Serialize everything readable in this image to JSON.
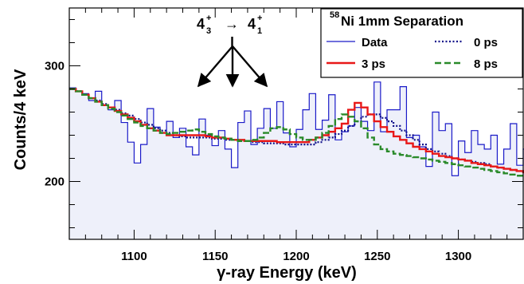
{
  "chart_data": {
    "type": "line",
    "xlabel": "γ-ray Energy (keV)",
    "ylabel": "Counts/4 keV",
    "xlim": [
      1060,
      1340
    ],
    "ylim": [
      150,
      350
    ],
    "xticks": [
      1100,
      1150,
      1200,
      1250,
      1300
    ],
    "yticks": [
      200,
      300
    ],
    "grid": false,
    "legend_placement": "top-right",
    "legend": {
      "title_sup": "58",
      "title": "Ni 1mm Separation",
      "entries": [
        "Data",
        "0 ps",
        "3 ps",
        "8 ps"
      ]
    },
    "annotation": {
      "left_main": "4",
      "left_super": "+",
      "left_sub": "3",
      "arrow": "→",
      "right_main": "4",
      "right_super": "+",
      "right_sub": "1",
      "arrow_targets_x": [
        1135,
        1160,
        1183
      ]
    },
    "bin_width": 4,
    "bin_start": 1060,
    "series": [
      {
        "name": "Data",
        "color": "#1a1ac8",
        "style": "step-filled",
        "fill": "#eef0fa",
        "values": [
          281,
          278,
          276,
          270,
          278,
          266,
          262,
          270,
          251,
          234,
          216,
          232,
          263,
          247,
          242,
          252,
          238,
          246,
          230,
          223,
          254,
          240,
          231,
          244,
          228,
          212,
          251,
          261,
          232,
          246,
          263,
          246,
          269,
          242,
          230,
          245,
          262,
          276,
          245,
          253,
          275,
          236,
          243,
          248,
          264,
          252,
          244,
          286,
          243,
          262,
          262,
          282,
          238,
          240,
          230,
          213,
          260,
          244,
          250,
          205,
          235,
          225,
          244,
          232,
          228,
          240,
          215,
          228,
          250,
          214,
          228,
          225,
          207,
          214
        ]
      },
      {
        "name": "0 ps",
        "color": "#11118a",
        "style": "dotted",
        "values": [
          280,
          278,
          275,
          272,
          270,
          267,
          264,
          262,
          259,
          257,
          254,
          251,
          249,
          246,
          244,
          242,
          240,
          239,
          238,
          238,
          238,
          238,
          237,
          237,
          236,
          236,
          235,
          235,
          234,
          234,
          233,
          233,
          233,
          232,
          232,
          232,
          232,
          232,
          234,
          236,
          238,
          241,
          244,
          248,
          252,
          256,
          258,
          258,
          255,
          252,
          248,
          244,
          240,
          236,
          232,
          228,
          226,
          224,
          222,
          220,
          219,
          218,
          217,
          216,
          215,
          213,
          212,
          211,
          210,
          209,
          208,
          207,
          206,
          205
        ]
      },
      {
        "name": "3 ps",
        "color": "#e81818",
        "style": "solid",
        "values": [
          280,
          278,
          275,
          272,
          269,
          266,
          264,
          261,
          258,
          255,
          252,
          249,
          246,
          244,
          242,
          240,
          240,
          240,
          240,
          240,
          240,
          239,
          238,
          238,
          237,
          236,
          236,
          235,
          235,
          235,
          235,
          235,
          234,
          234,
          234,
          234,
          234,
          236,
          238,
          240,
          243,
          246,
          250,
          262,
          268,
          264,
          258,
          252,
          247,
          243,
          239,
          236,
          233,
          230,
          228,
          226,
          224,
          222,
          221,
          220,
          219,
          218,
          216,
          215,
          214,
          213,
          212,
          211,
          210,
          209,
          208,
          207,
          206,
          205
        ]
      },
      {
        "name": "8 ps",
        "color": "#2a8a2a",
        "style": "dashed",
        "values": [
          280,
          278,
          275,
          272,
          269,
          266,
          263,
          260,
          257,
          254,
          251,
          248,
          246,
          244,
          242,
          241,
          242,
          243,
          244,
          245,
          243,
          241,
          239,
          238,
          237,
          236,
          235,
          235,
          236,
          238,
          242,
          246,
          247,
          245,
          241,
          238,
          236,
          236,
          238,
          242,
          248,
          254,
          258,
          256,
          252,
          246,
          238,
          232,
          228,
          226,
          224,
          223,
          222,
          221,
          220,
          219,
          218,
          217,
          216,
          215,
          214,
          213,
          212,
          211,
          210,
          209,
          208,
          207,
          206,
          205
        ]
      }
    ]
  }
}
